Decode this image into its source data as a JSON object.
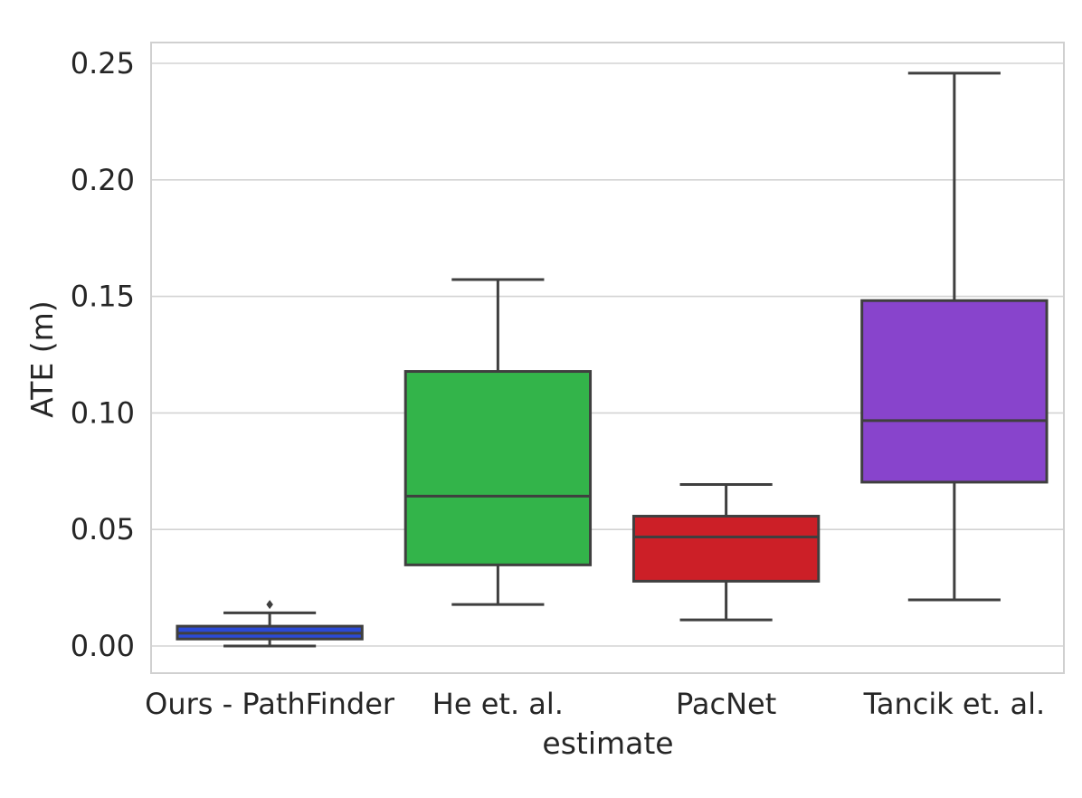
{
  "chart_data": {
    "type": "box",
    "title": "",
    "xlabel": "estimate",
    "ylabel": "ATE (m)",
    "ylim": [
      -0.012,
      0.26
    ],
    "yticks": [
      0.0,
      0.05,
      0.1,
      0.15,
      0.2,
      0.25
    ],
    "ytick_labels": [
      "0.00",
      "0.05",
      "0.10",
      "0.15",
      "0.20",
      "0.25"
    ],
    "grid": true,
    "categories": [
      "Ours - PathFinder",
      "He et. al.",
      "PacNet",
      "Tancik et. al."
    ],
    "boxes": [
      {
        "name": "Ours - PathFinder",
        "color": "#2b4ad6",
        "whisker_low": 0.0,
        "q1": 0.003,
        "median": 0.0055,
        "q3": 0.0085,
        "whisker_high": 0.0142,
        "outliers": [
          0.0178
        ]
      },
      {
        "name": "He et. al.",
        "color": "#33b44a",
        "whisker_low": 0.0178,
        "q1": 0.0348,
        "median": 0.0643,
        "q3": 0.1178,
        "whisker_high": 0.1572,
        "outliers": []
      },
      {
        "name": "PacNet",
        "color": "#cc1f27",
        "whisker_low": 0.0112,
        "q1": 0.0278,
        "median": 0.0468,
        "q3": 0.0557,
        "whisker_high": 0.0693,
        "outliers": []
      },
      {
        "name": "Tancik et. al.",
        "color": "#8844cc",
        "whisker_low": 0.0198,
        "q1": 0.0703,
        "median": 0.0967,
        "q3": 0.1482,
        "whisker_high": 0.2458,
        "outliers": []
      }
    ]
  }
}
